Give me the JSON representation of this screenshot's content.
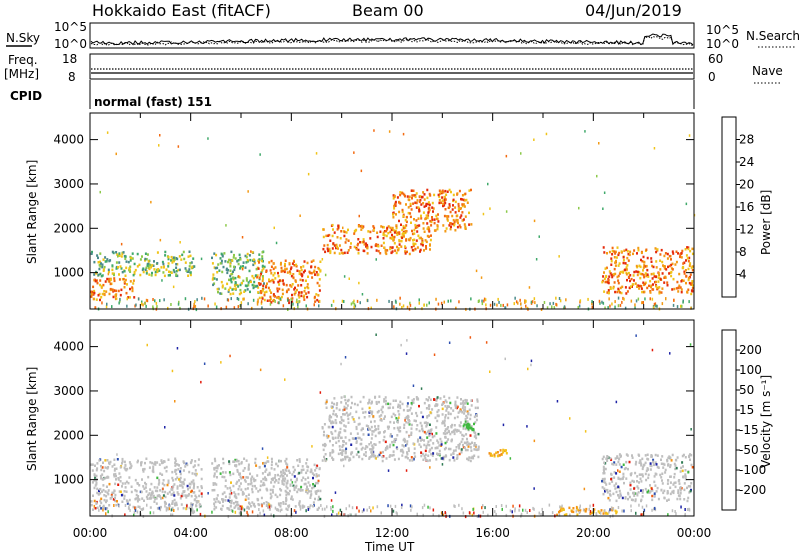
{
  "header": {
    "station": "Hokkaido East (fitACF)",
    "beam": "Beam 00",
    "date": "04/Jun/2019"
  },
  "strip_panels": {
    "nsky_label": "N.Sky",
    "nsky_ticks": [
      "10^5",
      "10^0"
    ],
    "nsearch_label": "N.Search",
    "nsearch_ticks": [
      "10^5",
      "10^0"
    ],
    "freq_label_top": "Freq.",
    "freq_label_unit": "[MHz]",
    "freq_ticks": [
      "18",
      "8"
    ],
    "nave_label": "Nave",
    "nave_ticks": [
      "60",
      "0"
    ],
    "cpid_label": "CPID",
    "cpid_text": "normal (fast) 151"
  },
  "colors": {
    "axis": "#000000",
    "background": "#ffffff",
    "power_scale": [
      "#1f1fd8",
      "#2a5fb4",
      "#4a8a8a",
      "#3fa96a",
      "#8cc94a",
      "#f0c419",
      "#f39a14",
      "#f36a10",
      "#e52a0a"
    ],
    "velocity_scale": [
      "#1e24a6",
      "#2d4fb0",
      "#2e7a52",
      "#3fb83f",
      "#bfbfbf",
      "#bfbfbf",
      "#f3c21c",
      "#f39216",
      "#ef5a12",
      "#e21a0a"
    ]
  },
  "chart_data": [
    {
      "type": "heatmap",
      "title": "Power",
      "xlabel": "Time UT",
      "ylabel": "Slant Range [km]",
      "xlim": [
        "00:00",
        "24:00"
      ],
      "ylim": [
        180,
        4600
      ],
      "x_ticks": [
        "00:00",
        "04:00",
        "08:00",
        "12:00",
        "16:00",
        "20:00",
        "00:00"
      ],
      "y_ticks": [
        "1000",
        "2000",
        "3000",
        "4000"
      ],
      "colorbar": {
        "label": "Power [dB]",
        "ticks": [
          "4",
          "8",
          "12",
          "16",
          "20",
          "24",
          "28"
        ],
        "range": [
          0,
          30
        ]
      },
      "regions": [
        {
          "t": [
            0.0,
            1.8
          ],
          "range_km": [
            350,
            900
          ],
          "level": "high"
        },
        {
          "t": [
            0.0,
            4.2
          ],
          "range_km": [
            900,
            1500
          ],
          "level": "medium"
        },
        {
          "t": [
            4.8,
            7.0
          ],
          "range_km": [
            500,
            1500
          ],
          "level": "medium"
        },
        {
          "t": [
            6.6,
            9.2
          ],
          "range_km": [
            300,
            1300
          ],
          "level": "high"
        },
        {
          "t": [
            9.2,
            13.6
          ],
          "range_km": [
            1400,
            2100
          ],
          "level": "high"
        },
        {
          "t": [
            12.0,
            15.2
          ],
          "range_km": [
            1900,
            2900
          ],
          "level": "high"
        },
        {
          "t": [
            20.3,
            24.0
          ],
          "range_km": [
            500,
            1600
          ],
          "level": "high"
        }
      ]
    },
    {
      "type": "heatmap",
      "title": "Velocity",
      "xlabel": "Time UT",
      "ylabel": "Slant Range [km]",
      "xlim": [
        "00:00",
        "24:00"
      ],
      "ylim": [
        180,
        4600
      ],
      "x_ticks": [
        "00:00",
        "04:00",
        "08:00",
        "12:00",
        "16:00",
        "20:00",
        "00:00"
      ],
      "y_ticks": [
        "1000",
        "2000",
        "3000",
        "4000"
      ],
      "colorbar": {
        "label": "Velocity [m s⁻¹]",
        "ticks": [
          "200",
          "100",
          "50",
          "15",
          "-15",
          "-50",
          "-100",
          "-200"
        ],
        "range": [
          -250,
          250
        ]
      },
      "regions": [
        {
          "t": [
            0.0,
            4.5
          ],
          "range_km": [
            300,
            1500
          ],
          "level": "near-zero"
        },
        {
          "t": [
            4.8,
            9.2
          ],
          "range_km": [
            300,
            1500
          ],
          "level": "near-zero"
        },
        {
          "t": [
            9.2,
            15.5
          ],
          "range_km": [
            1400,
            2900
          ],
          "level": "near-zero"
        },
        {
          "t": [
            14.8,
            15.3
          ],
          "range_km": [
            2100,
            2300
          ],
          "level": "positive"
        },
        {
          "t": [
            15.8,
            16.6
          ],
          "range_km": [
            1500,
            1700
          ],
          "level": "negative"
        },
        {
          "t": [
            18.5,
            21.0
          ],
          "range_km": [
            180,
            400
          ],
          "level": "negative"
        },
        {
          "t": [
            20.3,
            24.0
          ],
          "range_km": [
            500,
            1600
          ],
          "level": "near-zero"
        }
      ]
    }
  ],
  "labels": {
    "x_axis_title": "Time UT"
  }
}
